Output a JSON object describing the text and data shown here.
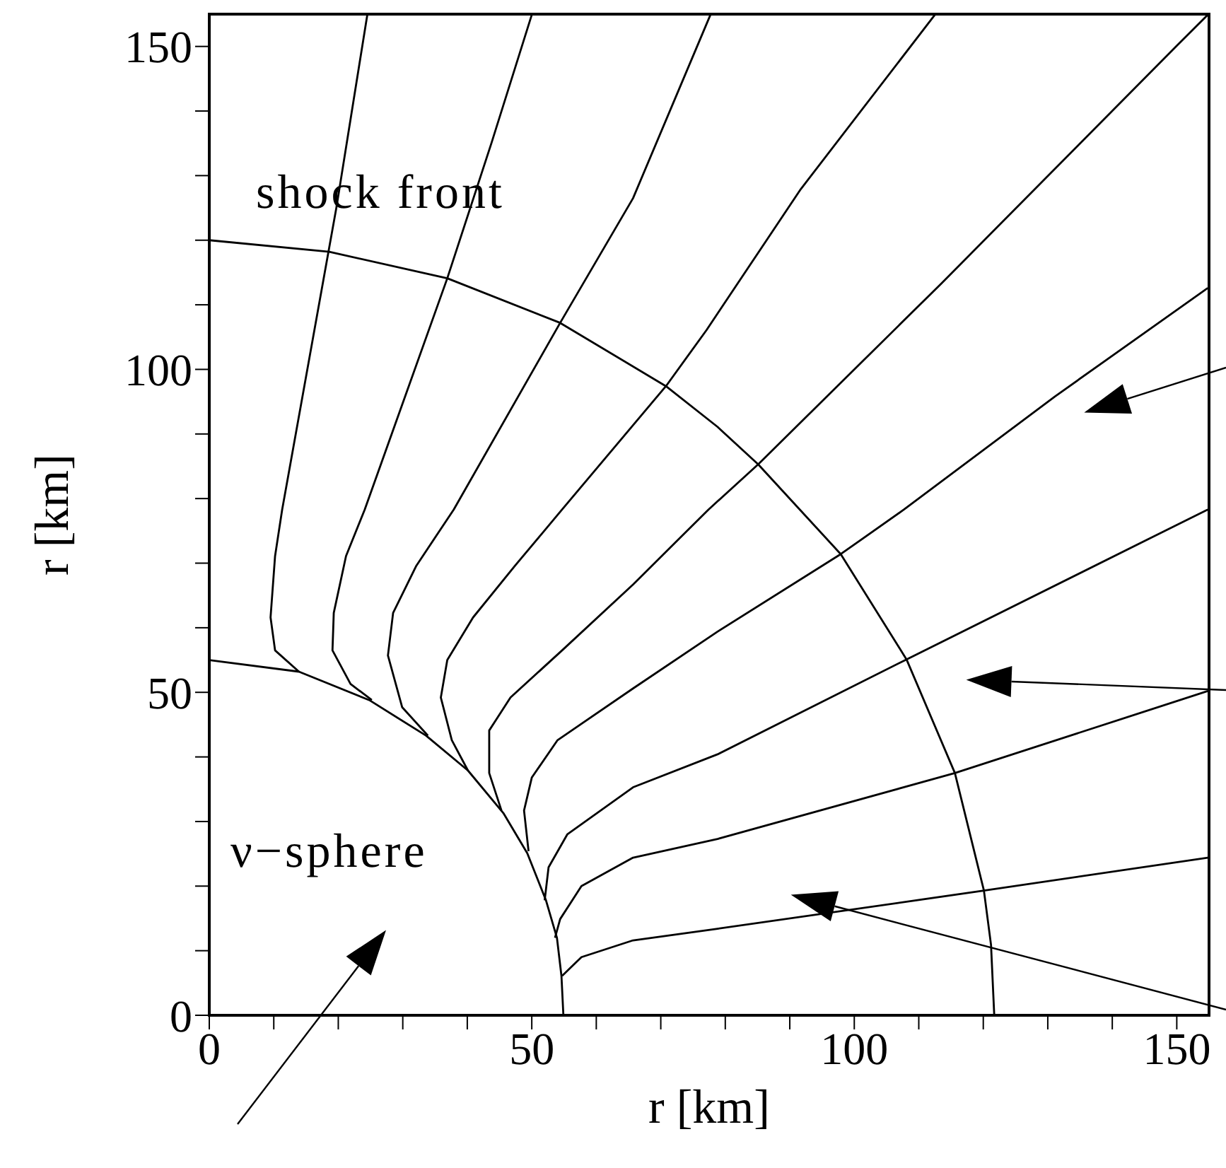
{
  "chart_data": {
    "type": "line",
    "xlabel": "r [km]",
    "ylabel": "r [km]",
    "xlim": [
      0,
      155
    ],
    "ylim": [
      0,
      155
    ],
    "xticks": [
      0,
      {
        "value": 10,
        "label": null
      },
      {
        "value": 20,
        "label": null
      },
      {
        "value": 30,
        "label": null
      },
      {
        "value": 40,
        "label": null
      },
      50,
      {
        "value": 60,
        "label": null
      },
      {
        "value": 70,
        "label": null
      },
      {
        "value": 80,
        "label": null
      },
      {
        "value": 90,
        "label": null
      },
      100,
      {
        "value": 110,
        "label": null
      },
      {
        "value": 120,
        "label": null
      },
      {
        "value": 130,
        "label": null
      },
      {
        "value": 140,
        "label": null
      },
      150
    ],
    "yticks": [
      0,
      {
        "value": 10,
        "label": null
      },
      {
        "value": 20,
        "label": null
      },
      {
        "value": 30,
        "label": null
      },
      {
        "value": 40,
        "label": null
      },
      50,
      {
        "value": 60,
        "label": null
      },
      {
        "value": 70,
        "label": null
      },
      {
        "value": 80,
        "label": null
      },
      {
        "value": 90,
        "label": null
      },
      100,
      {
        "value": 110,
        "label": null
      },
      {
        "value": 120,
        "label": null
      },
      {
        "value": 130,
        "label": null
      },
      {
        "value": 140,
        "label": null
      },
      150
    ],
    "grid": false,
    "legend": false,
    "marker": "none",
    "line_style": "solid",
    "annotations": [
      "shock front",
      "ν−sphere"
    ],
    "series": [
      {
        "color": "#000000",
        "x": [
          0,
          18.6,
          36.9,
          54.4,
          70.8,
          78.8,
          85.1,
          97.9,
          108.1,
          115.6,
          120.1,
          121.2,
          121.7
        ],
        "values": [
          120,
          118.2,
          114.1,
          107.2,
          97.4,
          91.1,
          85.3,
          71.4,
          55.1,
          37.5,
          19.3,
          10.9,
          0
        ]
      },
      {
        "color": "#000000",
        "x": [
          0,
          13.9,
          24.8,
          33.6,
          40.1,
          45.6,
          49.3,
          52.2,
          53.9,
          54.6,
          54.9
        ],
        "values": [
          55,
          53.2,
          48.8,
          43.3,
          37.9,
          31.3,
          25.1,
          17.8,
          12,
          6.1,
          0
        ]
      },
      {
        "color": "#000000",
        "x": [
          13.9,
          10.2,
          9.5,
          10.2,
          11.3,
          19.7,
          24.5
        ],
        "values": [
          53.2,
          56.5,
          61.6,
          71.1,
          78.3,
          125,
          154.9
        ]
      },
      {
        "color": "#000000",
        "x": [
          25.2,
          21.9,
          19.1,
          19.3,
          21.2,
          24.1,
          36.9,
          43.8,
          50
        ],
        "values": [
          48.8,
          51.3,
          56.5,
          62.3,
          71.1,
          78.3,
          114.1,
          135.2,
          154.9
        ]
      },
      {
        "color": "#000000",
        "x": [
          33.9,
          29.9,
          27.7,
          28.5,
          32.1,
          37.9,
          54.4,
          65.7,
          77.7
        ],
        "values": [
          43.3,
          47.7,
          55.7,
          62.3,
          69.6,
          78.3,
          107.2,
          126.5,
          154.9
        ]
      },
      {
        "color": "#000000",
        "x": [
          40.1,
          37.6,
          35.9,
          36.9,
          40.9,
          47.4,
          54.7,
          70.8,
          77.1,
          91.7,
          112.5
        ],
        "values": [
          37.9,
          42.6,
          49.2,
          55,
          61.6,
          69.6,
          78.3,
          97.4,
          106.1,
          127.9,
          154.9
        ]
      },
      {
        "color": "#000000",
        "x": [
          45.3,
          43.4,
          43.4,
          46.7,
          54.7,
          65.7,
          77.4,
          85.1,
          113.5,
          150.1,
          154.8
        ],
        "values": [
          31.7,
          37.5,
          44.1,
          49.2,
          56.5,
          66.7,
          78.3,
          85.3,
          113.3,
          150.2,
          154.9
        ]
      },
      {
        "color": "#000000",
        "x": [
          49.5,
          48.8,
          50,
          54,
          65.7,
          78.8,
          97.9,
          107.7,
          131.1,
          154.8
        ],
        "values": [
          25.4,
          31.7,
          36.8,
          42.6,
          50.6,
          59.4,
          71.4,
          78.3,
          95.8,
          112.6
        ]
      },
      {
        "color": "#000000",
        "x": [
          52,
          52.6,
          55.5,
          65.7,
          78.8,
          108.1,
          154.8
        ],
        "values": [
          17.8,
          22.9,
          28,
          35.3,
          40.4,
          55.1,
          78.3
        ]
      },
      {
        "color": "#000000",
        "x": [
          53.6,
          54.4,
          57.7,
          65.7,
          78.8,
          115.6,
          154.8
        ],
        "values": [
          12,
          14.9,
          20,
          24.4,
          27.3,
          37.5,
          50.2
        ]
      },
      {
        "color": "#000000",
        "x": [
          54.7,
          57.7,
          65.7,
          78.8,
          120.1,
          154.8
        ],
        "values": [
          6.1,
          9,
          11.6,
          13.4,
          19.3,
          24.4
        ]
      }
    ]
  }
}
